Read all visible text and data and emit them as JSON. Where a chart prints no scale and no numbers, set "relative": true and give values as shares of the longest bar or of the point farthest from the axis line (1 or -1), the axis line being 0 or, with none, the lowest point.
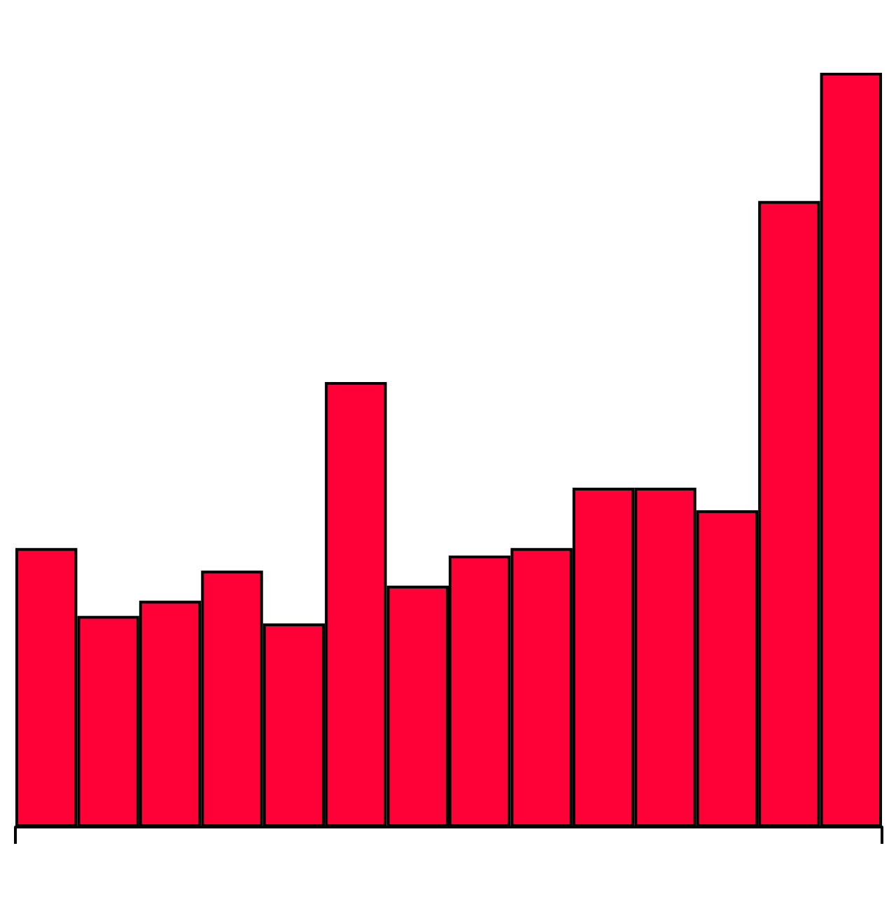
{
  "chart_data": {
    "type": "bar",
    "relative": true,
    "categories": [
      null,
      null,
      null,
      null,
      null,
      null,
      null,
      null,
      null,
      null,
      null,
      null,
      null,
      null
    ],
    "values": [
      0.37,
      0.28,
      0.3,
      0.34,
      0.27,
      0.59,
      0.32,
      0.36,
      0.37,
      0.45,
      0.45,
      0.42,
      0.83,
      1
    ],
    "color": "#ff0037",
    "grid": false
  }
}
